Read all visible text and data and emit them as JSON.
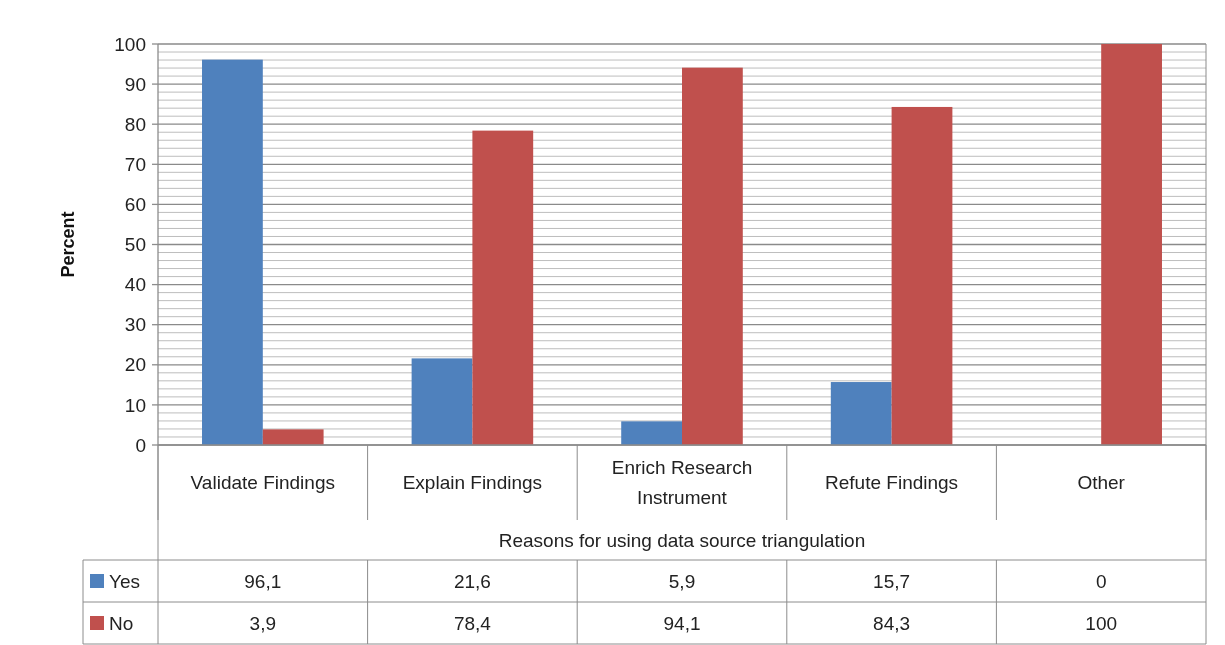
{
  "chart_data": {
    "type": "bar",
    "categories": [
      "Validate Findings",
      "Explain Findings",
      "Enrich Research Instrument",
      "Refute Findings",
      "Other"
    ],
    "series": [
      {
        "name": "Yes",
        "color": "#4f81bd",
        "values": [
          96.1,
          21.6,
          5.9,
          15.7,
          0
        ],
        "value_labels": [
          "96,1",
          "21,6",
          "5,9",
          "15,7",
          "0"
        ]
      },
      {
        "name": "No",
        "color": "#c0504d",
        "values": [
          3.9,
          78.4,
          94.1,
          84.3,
          100
        ],
        "value_labels": [
          "3,9",
          "78,4",
          "94,1",
          "84,3",
          "100"
        ]
      }
    ],
    "xlabel": "Reasons for using data source triangulation",
    "ylabel": "Percent",
    "ylim": [
      0,
      100
    ],
    "yticks": [
      0,
      {
        "value": 2,
        "label": null
      },
      {
        "value": 4,
        "label": null
      },
      {
        "value": 6,
        "label": null
      },
      {
        "value": 8,
        "label": null
      },
      10,
      {
        "value": 12,
        "label": null
      },
      {
        "value": 14,
        "label": null
      },
      {
        "value": 16,
        "label": null
      },
      {
        "value": 18,
        "label": null
      },
      20,
      {
        "value": 22,
        "label": null
      },
      {
        "value": 24,
        "label": null
      },
      {
        "value": 26,
        "label": null
      },
      {
        "value": 28,
        "label": null
      },
      30,
      {
        "value": 32,
        "label": null
      },
      {
        "value": 34,
        "label": null
      },
      {
        "value": 36,
        "label": null
      },
      {
        "value": 38,
        "label": null
      },
      40,
      {
        "value": 42,
        "label": null
      },
      {
        "value": 44,
        "label": null
      },
      {
        "value": 46,
        "label": null
      },
      {
        "value": 48,
        "label": null
      },
      50,
      {
        "value": 52,
        "label": null
      },
      {
        "value": 54,
        "label": null
      },
      {
        "value": 56,
        "label": null
      },
      {
        "value": 58,
        "label": null
      },
      60,
      {
        "value": 62,
        "label": null
      },
      {
        "value": 64,
        "label": null
      },
      {
        "value": 66,
        "label": null
      },
      {
        "value": 68,
        "label": null
      },
      70,
      {
        "value": 72,
        "label": null
      },
      {
        "value": 74,
        "label": null
      },
      {
        "value": 76,
        "label": null
      },
      {
        "value": 78,
        "label": null
      },
      80,
      {
        "value": 82,
        "label": null
      },
      {
        "value": 84,
        "label": null
      },
      {
        "value": 86,
        "label": null
      },
      {
        "value": 88,
        "label": null
      },
      90,
      {
        "value": 92,
        "label": null
      },
      {
        "value": 94,
        "label": null
      },
      {
        "value": 96,
        "label": null
      },
      {
        "value": 98,
        "label": null
      },
      100
    ],
    "grid": "y",
    "legend": "bottom left"
  }
}
